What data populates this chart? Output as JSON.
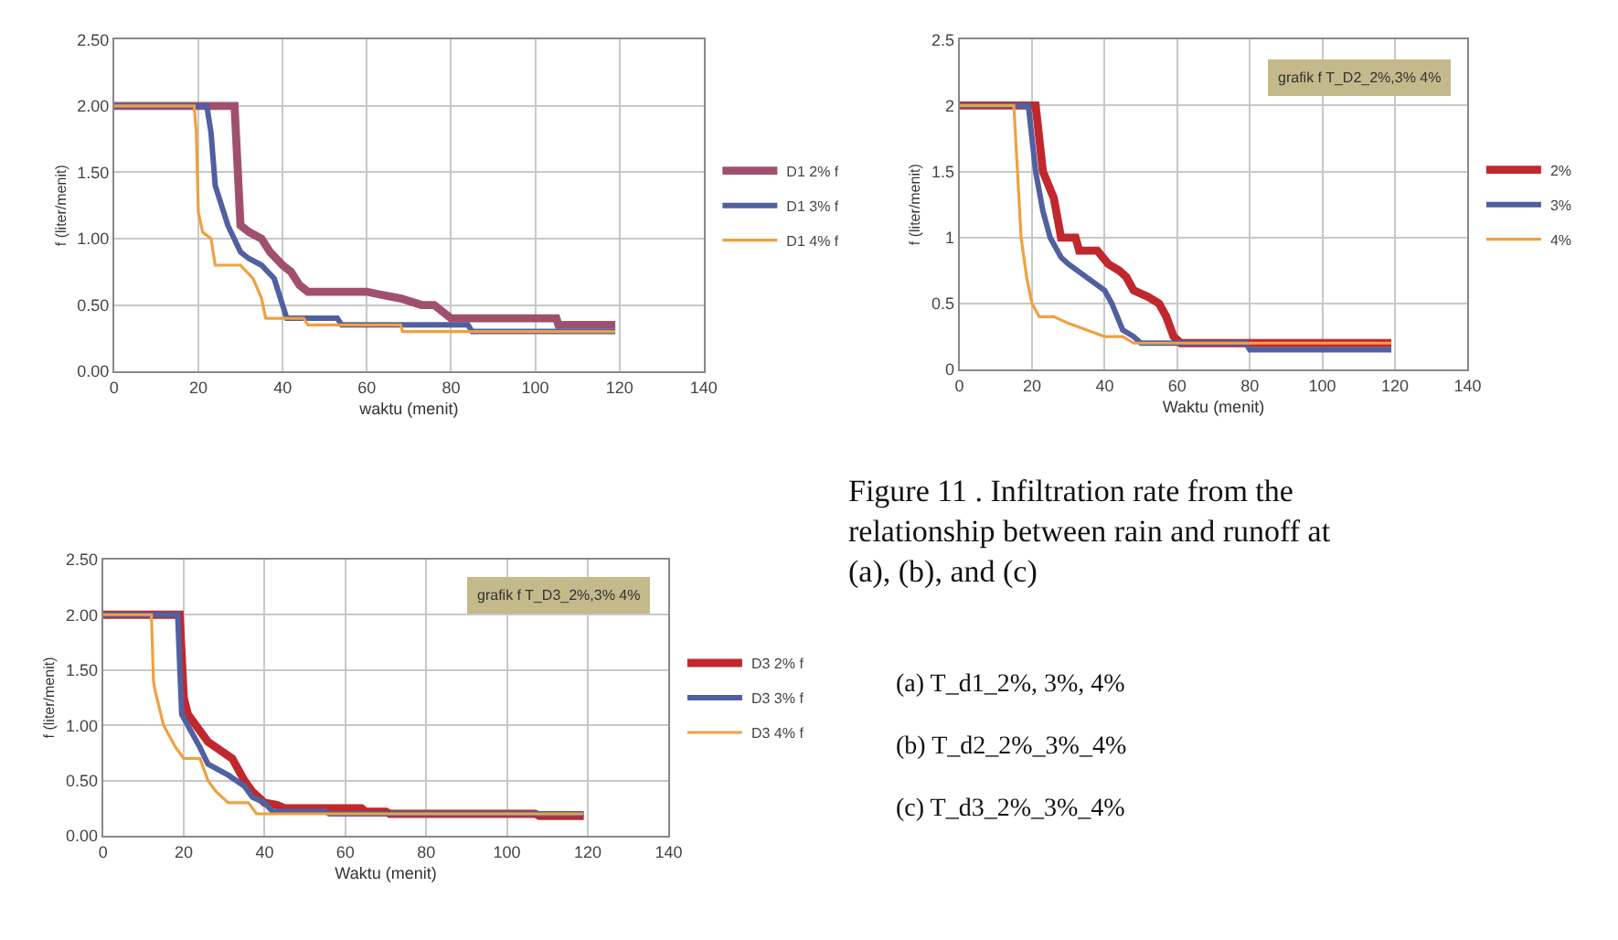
{
  "chart_data": [
    {
      "type": "line",
      "xlabel": "waktu (menit)",
      "ylabel": "f (liter/menit)",
      "xlim": [
        0,
        140
      ],
      "xticks": [
        0,
        20,
        40,
        60,
        80,
        100,
        120,
        140
      ],
      "ylim": [
        0,
        2.5
      ],
      "yticks": [
        {
          "value": 0,
          "label": "0.00"
        },
        {
          "value": 0.5,
          "label": "0.50"
        },
        {
          "value": 1,
          "label": "1.00"
        },
        {
          "value": 1.5,
          "label": "1.50"
        },
        {
          "value": 2,
          "label": "2.00"
        },
        {
          "value": 2.5,
          "label": "2.50"
        }
      ],
      "grid": true,
      "legend": "right",
      "marker": "none",
      "line_style": "solid",
      "series": [
        {
          "name": "D1 2% f",
          "color": "#a0506e",
          "x": [
            0,
            28.6,
            30,
            32,
            35,
            37,
            40,
            42,
            44,
            46,
            60,
            63,
            68,
            73,
            76,
            80,
            105,
            105.5,
            119
          ],
          "values": [
            2.0,
            2.0,
            1.1,
            1.05,
            1.0,
            0.9,
            0.8,
            0.75,
            0.65,
            0.6,
            0.6,
            0.58,
            0.55,
            0.5,
            0.5,
            0.4,
            0.4,
            0.35,
            0.35
          ]
        },
        {
          "name": "D1 3% f",
          "color": "#5060a0",
          "x": [
            0,
            22,
            23,
            24,
            25,
            27,
            30,
            32,
            35,
            38,
            40,
            41,
            53,
            54,
            84,
            85,
            119
          ],
          "values": [
            2.0,
            2.0,
            1.8,
            1.4,
            1.3,
            1.1,
            0.9,
            0.85,
            0.8,
            0.7,
            0.5,
            0.4,
            0.4,
            0.35,
            0.35,
            0.3,
            0.3
          ]
        },
        {
          "name": "D1 4% f",
          "color": "#f0a040",
          "x": [
            0,
            19,
            19.5,
            20,
            21,
            23,
            24,
            30,
            33,
            35,
            36,
            45,
            46,
            68,
            68.5,
            119
          ],
          "values": [
            2.0,
            2.0,
            1.8,
            1.2,
            1.05,
            1.0,
            0.8,
            0.8,
            0.7,
            0.55,
            0.4,
            0.4,
            0.35,
            0.35,
            0.3,
            0.3
          ]
        }
      ]
    },
    {
      "type": "line",
      "xlabel": "Waktu (menit)",
      "ylabel": "f (liter/menit)",
      "xlim": [
        0,
        140
      ],
      "xticks": [
        0,
        20,
        40,
        60,
        80,
        100,
        120,
        140
      ],
      "ylim": [
        0,
        2.5
      ],
      "yticks": [
        0,
        0.5,
        1,
        1.5,
        2,
        2.5
      ],
      "grid": true,
      "legend": "right",
      "marker": "none",
      "line_style": "solid",
      "annotations": [
        "grafik f T_D2_2%,3% 4%"
      ],
      "series": [
        {
          "name": "2%",
          "color": "#c0282d",
          "x": [
            0,
            21,
            23,
            26,
            28,
            32,
            33,
            38,
            41,
            44,
            46,
            48,
            52,
            55,
            57,
            59,
            61,
            119
          ],
          "values": [
            2.0,
            2.0,
            1.5,
            1.3,
            1.0,
            1.0,
            0.9,
            0.9,
            0.8,
            0.75,
            0.7,
            0.6,
            0.55,
            0.5,
            0.4,
            0.25,
            0.2,
            0.2
          ]
        },
        {
          "name": "3%",
          "color": "#5060a0",
          "x": [
            0,
            19,
            21,
            23,
            25,
            28,
            30,
            35,
            40,
            42,
            45,
            48,
            50,
            79,
            80,
            119
          ],
          "values": [
            2.0,
            2.0,
            1.5,
            1.2,
            1.0,
            0.85,
            0.8,
            0.7,
            0.6,
            0.5,
            0.3,
            0.25,
            0.2,
            0.2,
            0.15,
            0.15
          ]
        },
        {
          "name": "4%",
          "color": "#f0a040",
          "x": [
            0,
            15,
            16,
            17,
            18.5,
            20,
            22,
            26,
            30,
            35,
            40,
            45,
            48,
            119
          ],
          "values": [
            2.0,
            2.0,
            1.5,
            1.0,
            0.7,
            0.5,
            0.4,
            0.4,
            0.35,
            0.3,
            0.25,
            0.25,
            0.2,
            0.2
          ]
        }
      ]
    },
    {
      "type": "line",
      "xlabel": "Waktu (menit)",
      "ylabel": "f (liter/menit)",
      "xlim": [
        0,
        140
      ],
      "xticks": [
        0,
        20,
        40,
        60,
        80,
        100,
        120,
        140
      ],
      "ylim": [
        0,
        2.5
      ],
      "yticks": [
        {
          "value": 0,
          "label": "0.00"
        },
        {
          "value": 0.5,
          "label": "0.50"
        },
        {
          "value": 1,
          "label": "1.00"
        },
        {
          "value": 1.5,
          "label": "1.50"
        },
        {
          "value": 2,
          "label": "2.00"
        },
        {
          "value": 2.5,
          "label": "2.50"
        }
      ],
      "grid": true,
      "legend": "right",
      "marker": "none",
      "line_style": "solid",
      "annotations": [
        "grafik f T_D3_2%,3% 4%"
      ],
      "series": [
        {
          "name": "D3 2% f",
          "color": "#c0282d",
          "x": [
            0,
            19,
            20,
            21,
            23,
            26,
            28,
            32,
            35,
            37,
            40,
            43,
            45,
            64,
            65,
            70,
            71,
            107,
            108,
            119
          ],
          "values": [
            2.0,
            2.0,
            1.25,
            1.1,
            1.0,
            0.85,
            0.8,
            0.7,
            0.5,
            0.4,
            0.3,
            0.28,
            0.25,
            0.25,
            0.22,
            0.22,
            0.2,
            0.2,
            0.18,
            0.18
          ]
        },
        {
          "name": "D3 3% f",
          "color": "#5060a0",
          "x": [
            0,
            18.5,
            19.5,
            21,
            24,
            26,
            31,
            35,
            37,
            40,
            42,
            55,
            56,
            119
          ],
          "values": [
            2.0,
            2.0,
            1.1,
            1.0,
            0.8,
            0.65,
            0.55,
            0.45,
            0.35,
            0.3,
            0.22,
            0.22,
            0.2,
            0.2
          ]
        },
        {
          "name": "D3 4% f",
          "color": "#f0a040",
          "x": [
            0,
            12,
            12.5,
            13,
            15,
            18,
            20,
            24,
            26,
            28,
            31,
            36,
            38,
            119
          ],
          "values": [
            2.0,
            2.0,
            1.4,
            1.3,
            1.0,
            0.8,
            0.7,
            0.7,
            0.5,
            0.4,
            0.3,
            0.3,
            0.2,
            0.2
          ]
        }
      ]
    },
    {
      "type": "other",
      "title": "Figure 11 . Infiltration rate from the relationship between rain and runoff at (a), (b), and (c)",
      "annotations": [
        "(a) T_d1_2%, 3%, 4%",
        "(b) T_d2_2%_3%_4%",
        "(c) T_d3_2%_3%_4%"
      ]
    }
  ]
}
